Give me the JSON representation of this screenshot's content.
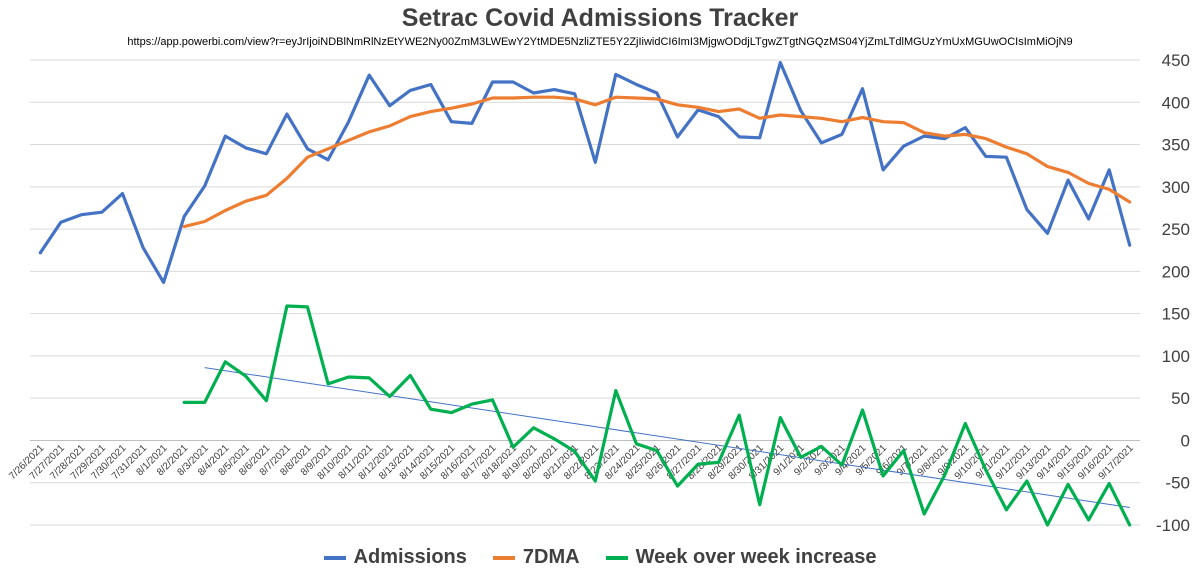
{
  "chart_data": {
    "type": "line",
    "title": "Setrac Covid Admissions Tracker",
    "subtitle": "https://app.powerbi.com/view?r=eyJrIjoiNDBlNmRlNzEtYWE2Ny00ZmM3LWEwY2YtMDE5NzliZTE5Y2ZjIiwidCI6ImI3MjgwODdjLTgwZTgtNGQzMS04YjZmLTdlMGUzYmUxMGUwOCIsImMiOjN9",
    "xlabel": "",
    "ylabel": "",
    "ylim": [
      -100,
      450
    ],
    "yticks": [
      -100,
      -50,
      0,
      50,
      100,
      150,
      200,
      250,
      300,
      350,
      400,
      450
    ],
    "grid": true,
    "legend_position": "bottom",
    "categories": [
      "7/26/2021",
      "7/27/2021",
      "7/28/2021",
      "7/29/2021",
      "7/30/2021",
      "7/31/2021",
      "8/1/2021",
      "8/2/2021",
      "8/3/2021",
      "8/4/2021",
      "8/5/2021",
      "8/6/2021",
      "8/7/2021",
      "8/8/2021",
      "8/9/2021",
      "8/10/2021",
      "8/11/2021",
      "8/12/2021",
      "8/13/2021",
      "8/14/2021",
      "8/15/2021",
      "8/16/2021",
      "8/17/2021",
      "8/18/2021",
      "8/19/2021",
      "8/20/2021",
      "8/21/2021",
      "8/22/2021",
      "8/23/2021",
      "8/24/2021",
      "8/25/2021",
      "8/26/2021",
      "8/27/2021",
      "8/28/2021",
      "8/29/2021",
      "8/30/2021",
      "8/31/2021",
      "9/1/2021",
      "9/2/2021",
      "9/3/2021",
      "9/4/2021",
      "9/5/2021",
      "9/6/2021",
      "9/7/2021",
      "9/8/2021",
      "9/9/2021",
      "9/10/2021",
      "9/11/2021",
      "9/12/2021",
      "9/13/2021",
      "9/14/2021",
      "9/15/2021",
      "9/16/2021",
      "9/17/2021"
    ],
    "series": [
      {
        "name": "Admissions",
        "color": "#4472C4",
        "values": [
          222,
          258,
          267,
          270,
          292,
          228,
          187,
          265,
          301,
          360,
          346,
          339,
          386,
          345,
          332,
          377,
          432,
          396,
          414,
          421,
          377,
          375,
          424,
          424,
          411,
          415,
          410,
          329,
          433,
          421,
          411,
          359,
          391,
          383,
          359,
          358,
          447,
          390,
          352,
          362,
          416,
          320,
          348,
          360,
          357,
          370,
          336,
          335,
          273,
          245,
          308,
          262,
          320,
          231
        ]
      },
      {
        "name": "7DMA",
        "color": "#ED7D31",
        "values": [
          null,
          null,
          null,
          null,
          null,
          null,
          null,
          253,
          259,
          272,
          283,
          290,
          310,
          335,
          345,
          355,
          365,
          372,
          383,
          389,
          393,
          398,
          405,
          405,
          406,
          406,
          404,
          397,
          406,
          405,
          404,
          397,
          394,
          389,
          392,
          381,
          385,
          383,
          381,
          377,
          382,
          377,
          376,
          364,
          360,
          362,
          357,
          347,
          339,
          324,
          317,
          304,
          297,
          282
        ]
      },
      {
        "name": "Week over week increase",
        "color": "#00B050",
        "values": [
          null,
          null,
          null,
          null,
          null,
          null,
          null,
          45,
          45,
          93,
          76,
          47,
          159,
          158,
          67,
          75,
          74,
          52,
          77,
          37,
          33,
          43,
          48,
          -8,
          15,
          2,
          -13,
          -48,
          59,
          -4,
          -12,
          -54,
          -28,
          -26,
          30,
          -76,
          27,
          -20,
          -7,
          -29,
          36,
          -42,
          -12,
          -87,
          -41,
          20,
          -35,
          -82,
          -48,
          -100,
          -52,
          -94,
          -51,
          -100
        ]
      }
    ],
    "trendline": {
      "series": "Week over week increase",
      "color": "#4472C4"
    }
  }
}
